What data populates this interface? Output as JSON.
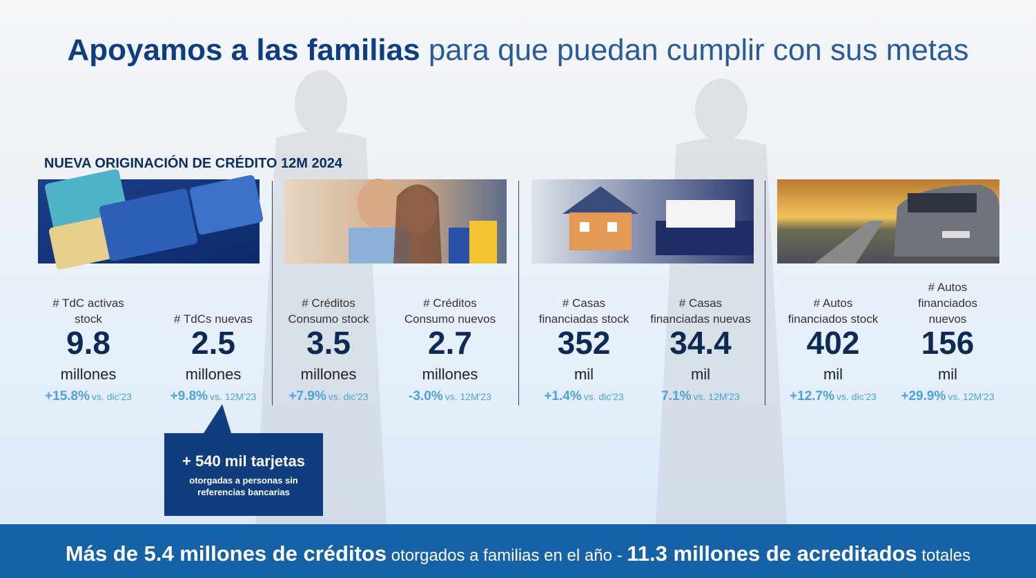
{
  "header": {
    "title_bold": "Apoyamos a las familias",
    "title_light": "para que puedan cumplir con sus metas"
  },
  "section_label": "NUEVA ORIGINACIÓN DE CRÉDITO 12M 2024",
  "groups": [
    {
      "metrics": [
        {
          "label_lines": [
            "# TdC activas",
            "stock"
          ],
          "value": "9.8",
          "unit": "millones",
          "change": "+15.8%",
          "comparison": "vs. dic'23"
        },
        {
          "label_lines": [
            "# TdCs nuevas"
          ],
          "value": "2.5",
          "unit": "millones",
          "change": "+9.8%",
          "comparison": "vs. 12M'23"
        }
      ]
    },
    {
      "metrics": [
        {
          "label_lines": [
            "# Créditos",
            "Consumo stock"
          ],
          "value": "3.5",
          "unit": "millones",
          "change": "+7.9%",
          "comparison": "vs. dic'23"
        },
        {
          "label_lines": [
            "# Créditos",
            "Consumo nuevos"
          ],
          "value": "2.7",
          "unit": "millones",
          "change": "-3.0%",
          "comparison": "vs. 12M'23"
        }
      ]
    },
    {
      "metrics": [
        {
          "label_lines": [
            "# Casas",
            "financiadas stock"
          ],
          "value": "352",
          "unit": "mil",
          "change": "+1.4%",
          "comparison": "vs. dic'23"
        },
        {
          "label_lines": [
            "# Casas",
            "financiadas nuevas"
          ],
          "value": "34.4",
          "unit": "mil",
          "change": "7.1%",
          "comparison": "vs. 12M'23"
        }
      ]
    },
    {
      "metrics": [
        {
          "label_lines": [
            "# Autos",
            "financiados stock"
          ],
          "value": "402",
          "unit": "mil",
          "change": "+12.7%",
          "comparison": "vs. dic'23"
        },
        {
          "label_lines": [
            "# Autos",
            "financiados",
            "nuevos"
          ],
          "value": "156",
          "unit": "mil",
          "change": "+29.9%",
          "comparison": "vs. 12M'23"
        }
      ]
    }
  ],
  "callout": {
    "title": "+ 540 mil tarjetas",
    "text": "otorgadas a personas sin referencias bancarias"
  },
  "footer": {
    "part1_bold": "Más de 5.4 millones de créditos",
    "part2": "otorgados a familias en el año -",
    "part3_bold": "11.3 millones de acreditados",
    "part4": "totales"
  }
}
